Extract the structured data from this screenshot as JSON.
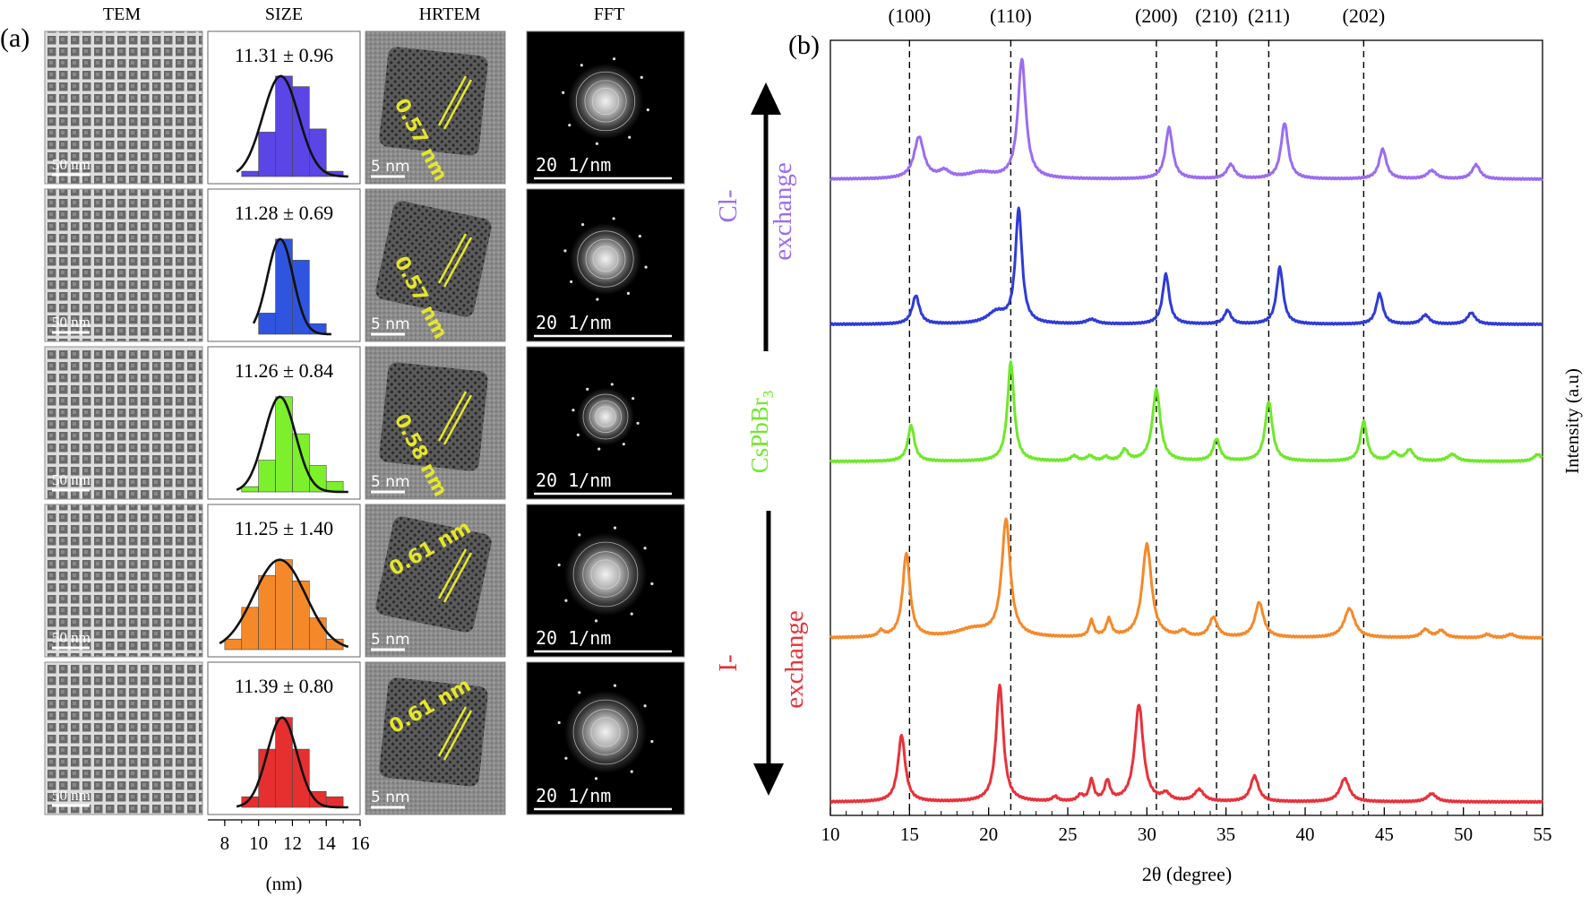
{
  "panel_a": {
    "label": "(a)",
    "column_headers": [
      "TEM",
      "SIZE",
      "HRTEM",
      "FFT"
    ],
    "tem_scale": "50 nm",
    "hrtem_scale": "5 nm",
    "fft_scale": "20 1/nm",
    "rows": [
      {
        "size": "11.31 ± 0.96",
        "lattice": "0.57 nm",
        "color": "#5b45e6"
      },
      {
        "size": "11.28 ± 0.69",
        "lattice": "0.57 nm",
        "color": "#2f55e0"
      },
      {
        "size": "11.26 ± 0.84",
        "lattice": "0.58 nm",
        "color": "#7cf02b"
      },
      {
        "size": "11.25 ± 1.40",
        "lattice": "0.61 nm",
        "color": "#f5892a"
      },
      {
        "size": "11.39 ± 0.80",
        "lattice": "0.61 nm",
        "color": "#e63030"
      }
    ]
  },
  "panel_b": {
    "label": "(b)",
    "peak_labels": [
      "(100)",
      "(110)",
      "(200)",
      "(210)",
      "(211)",
      "(202)"
    ],
    "cl_ion": "Cl-",
    "cl_word": "exchange",
    "center_main": "CsPbBr",
    "center_sub": "3",
    "i_ion": "I-",
    "i_word": "exchange"
  },
  "chart_data": [
    {
      "type": "bar",
      "title": "SIZE",
      "xlabel": "(nm)",
      "ylabel": "",
      "x_ticks": [
        8,
        10,
        12,
        14,
        16
      ],
      "xlim": [
        7,
        16
      ],
      "bin_width": 1,
      "series": [
        {
          "name": "11.31 ± 0.96",
          "bin_starts": [
            9,
            10,
            11,
            12,
            13,
            14
          ],
          "values": [
            0.05,
            0.42,
            0.95,
            0.85,
            0.45,
            0.05
          ]
        },
        {
          "name": "11.28 ± 0.69",
          "bin_starts": [
            10,
            11,
            12,
            13
          ],
          "values": [
            0.2,
            0.9,
            0.7,
            0.1
          ]
        },
        {
          "name": "11.26 ± 0.84",
          "bin_starts": [
            9,
            10,
            11,
            12,
            13,
            14
          ],
          "values": [
            0.05,
            0.3,
            0.9,
            0.55,
            0.25,
            0.1
          ]
        },
        {
          "name": "11.25 ± 1.40",
          "bin_starts": [
            8,
            9,
            10,
            11,
            12,
            13,
            14
          ],
          "values": [
            0.1,
            0.4,
            0.7,
            0.85,
            0.65,
            0.3,
            0.1
          ]
        },
        {
          "name": "11.39 ± 0.80",
          "bin_starts": [
            9,
            10,
            11,
            12,
            13,
            14
          ],
          "values": [
            0.1,
            0.55,
            0.85,
            0.55,
            0.15,
            0.1
          ]
        }
      ]
    },
    {
      "type": "line",
      "title": "",
      "xlabel": "2θ (degree)",
      "ylabel": "Intensity (a.u)",
      "xlim": [
        10,
        55
      ],
      "x_ticks": [
        10,
        15,
        20,
        25,
        30,
        35,
        40,
        45,
        50,
        55
      ],
      "grid": false,
      "reference_lines": [
        15.0,
        21.4,
        30.6,
        34.4,
        37.7,
        43.7
      ],
      "series": [
        {
          "name": "",
          "color": "#9b6cf0",
          "baseline": 0.895,
          "peaks": [
            [
              15.6,
              0.35,
              0.75
            ],
            [
              17.2,
              0.06,
              0.8
            ],
            [
              19.5,
              0.05,
              2.0
            ],
            [
              22.1,
              1.0,
              0.6
            ],
            [
              31.4,
              0.43,
              0.55
            ],
            [
              35.3,
              0.12,
              0.6
            ],
            [
              38.7,
              0.47,
              0.55
            ],
            [
              44.9,
              0.25,
              0.55
            ],
            [
              48.0,
              0.07,
              0.7
            ],
            [
              50.8,
              0.12,
              0.6
            ]
          ]
        },
        {
          "name": "",
          "color": "#2f3bd8",
          "baseline": 0.915,
          "peaks": [
            [
              15.4,
              0.25,
              0.55
            ],
            [
              20.5,
              0.1,
              1.4
            ],
            [
              21.9,
              1.0,
              0.5
            ],
            [
              26.5,
              0.04,
              0.8
            ],
            [
              31.2,
              0.44,
              0.5
            ],
            [
              35.1,
              0.12,
              0.5
            ],
            [
              38.4,
              0.5,
              0.5
            ],
            [
              44.7,
              0.27,
              0.5
            ],
            [
              47.6,
              0.08,
              0.6
            ],
            [
              50.5,
              0.1,
              0.6
            ]
          ]
        },
        {
          "name": "CsPbBr3",
          "color": "#6fe82a",
          "baseline": 0.905,
          "peaks": [
            [
              15.1,
              0.36,
              0.5
            ],
            [
              21.4,
              1.0,
              0.5
            ],
            [
              25.4,
              0.05,
              0.5
            ],
            [
              26.4,
              0.05,
              0.5
            ],
            [
              27.4,
              0.04,
              0.4
            ],
            [
              28.6,
              0.11,
              0.5
            ],
            [
              30.6,
              0.72,
              0.6
            ],
            [
              34.4,
              0.22,
              0.5
            ],
            [
              37.7,
              0.6,
              0.55
            ],
            [
              43.7,
              0.4,
              0.5
            ],
            [
              45.6,
              0.08,
              0.6
            ],
            [
              46.6,
              0.11,
              0.6
            ],
            [
              49.3,
              0.07,
              0.7
            ],
            [
              54.7,
              0.07,
              0.6
            ]
          ]
        },
        {
          "name": "",
          "color": "#f5892a",
          "baseline": 0.94,
          "peaks": [
            [
              13.2,
              0.05,
              0.4
            ],
            [
              14.8,
              0.72,
              0.55
            ],
            [
              19.0,
              0.07,
              2.5
            ],
            [
              21.1,
              1.0,
              0.65
            ],
            [
              26.5,
              0.14,
              0.35
            ],
            [
              27.6,
              0.15,
              0.4
            ],
            [
              30.0,
              0.8,
              0.7
            ],
            [
              32.3,
              0.05,
              0.6
            ],
            [
              34.2,
              0.17,
              0.6
            ],
            [
              37.1,
              0.3,
              0.65
            ],
            [
              42.8,
              0.25,
              0.8
            ],
            [
              47.6,
              0.07,
              0.6
            ],
            [
              48.6,
              0.06,
              0.6
            ],
            [
              51.5,
              0.03,
              0.5
            ],
            [
              53.0,
              0.03,
              0.6
            ]
          ]
        },
        {
          "name": "",
          "color": "#e8313a",
          "baseline": 0.935,
          "peaks": [
            [
              14.5,
              0.57,
              0.55
            ],
            [
              20.7,
              1.0,
              0.55
            ],
            [
              24.2,
              0.04,
              0.4
            ],
            [
              25.8,
              0.05,
              0.4
            ],
            [
              26.5,
              0.18,
              0.35
            ],
            [
              27.5,
              0.17,
              0.4
            ],
            [
              29.5,
              0.83,
              0.65
            ],
            [
              31.2,
              0.06,
              0.6
            ],
            [
              33.3,
              0.1,
              0.7
            ],
            [
              36.8,
              0.22,
              0.6
            ],
            [
              42.5,
              0.2,
              0.7
            ],
            [
              48.0,
              0.07,
              0.7
            ]
          ]
        }
      ]
    }
  ]
}
